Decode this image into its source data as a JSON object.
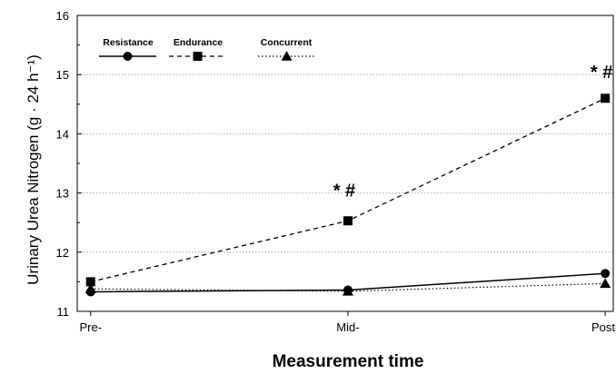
{
  "chart_data": {
    "type": "line",
    "categories": [
      "Pre-",
      "Mid-",
      "Post-"
    ],
    "ylabel": "Urinary Urea Nitrogen (g · 24 h⁻¹)",
    "xlabel": "Measurement time",
    "ylim": [
      11,
      16
    ],
    "yticks": [
      11,
      12,
      13,
      14,
      15,
      16
    ],
    "grid": true,
    "legend_position": "top-left",
    "series": [
      {
        "name": "Resistance",
        "values": [
          11.33,
          11.36,
          11.64
        ],
        "marker": "circle",
        "line": "solid",
        "color": "#000000"
      },
      {
        "name": "Endurance",
        "values": [
          11.5,
          12.53,
          14.6
        ],
        "marker": "square",
        "line": "dashed",
        "color": "#000000"
      },
      {
        "name": "Concurrent",
        "values": [
          11.38,
          11.34,
          11.47
        ],
        "marker": "triangle",
        "line": "dotted",
        "color": "#000000"
      }
    ],
    "annotations": [
      {
        "category": "Mid-",
        "y": 13.0,
        "text": "* #"
      },
      {
        "category": "Post-",
        "y": 15.0,
        "text": "* #"
      }
    ]
  }
}
